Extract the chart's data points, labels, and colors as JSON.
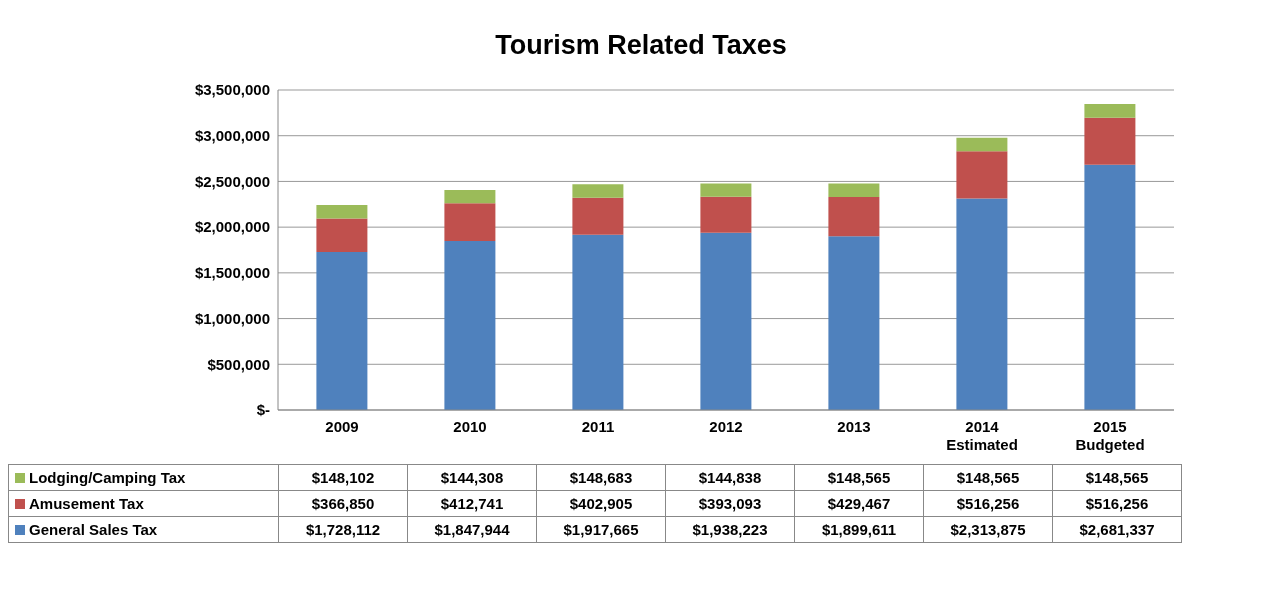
{
  "chart_data": {
    "type": "bar",
    "title": "Tourism Related Taxes",
    "stacked": true,
    "categories": [
      "2009",
      "2010",
      "2011",
      "2012",
      "2013",
      "2014 Estimated",
      "2015 Budgeted"
    ],
    "series": [
      {
        "name": "General Sales Tax",
        "color": "#4f81bd",
        "values": [
          1728112,
          1847944,
          1917665,
          1938223,
          1899611,
          2313875,
          2681337
        ],
        "value_labels": [
          "$1,728,112",
          "$1,847,944",
          "$1,917,665",
          "$1,938,223",
          "$1,899,611",
          "$2,313,875",
          "$2,681,337"
        ]
      },
      {
        "name": "Amusement Tax",
        "color": "#c0504d",
        "values": [
          366850,
          412741,
          402905,
          393093,
          429467,
          516256,
          516256
        ],
        "value_labels": [
          "$366,850",
          "$412,741",
          "$402,905",
          "$393,093",
          "$429,467",
          "$516,256",
          "$516,256"
        ]
      },
      {
        "name": "Lodging/Camping Tax",
        "color": "#9bbb59",
        "values": [
          148102,
          144308,
          148683,
          144838,
          148565,
          148565,
          148565
        ],
        "value_labels": [
          "$148,102",
          "$144,308",
          "$148,683",
          "$144,838",
          "$148,565",
          "$148,565",
          "$148,565"
        ]
      }
    ],
    "ylim": [
      0,
      3500000
    ],
    "yticks": [
      {
        "value": 0,
        "label": "$-"
      },
      {
        "value": 500000,
        "label": "$500,000"
      },
      {
        "value": 1000000,
        "label": "$1,000,000"
      },
      {
        "value": 1500000,
        "label": "$1,500,000"
      },
      {
        "value": 2000000,
        "label": "$2,000,000"
      },
      {
        "value": 2500000,
        "label": "$2,500,000"
      },
      {
        "value": 3000000,
        "label": "$3,000,000"
      },
      {
        "value": 3500000,
        "label": "$3,500,000"
      }
    ],
    "grid": "y",
    "legend": "bottom"
  }
}
